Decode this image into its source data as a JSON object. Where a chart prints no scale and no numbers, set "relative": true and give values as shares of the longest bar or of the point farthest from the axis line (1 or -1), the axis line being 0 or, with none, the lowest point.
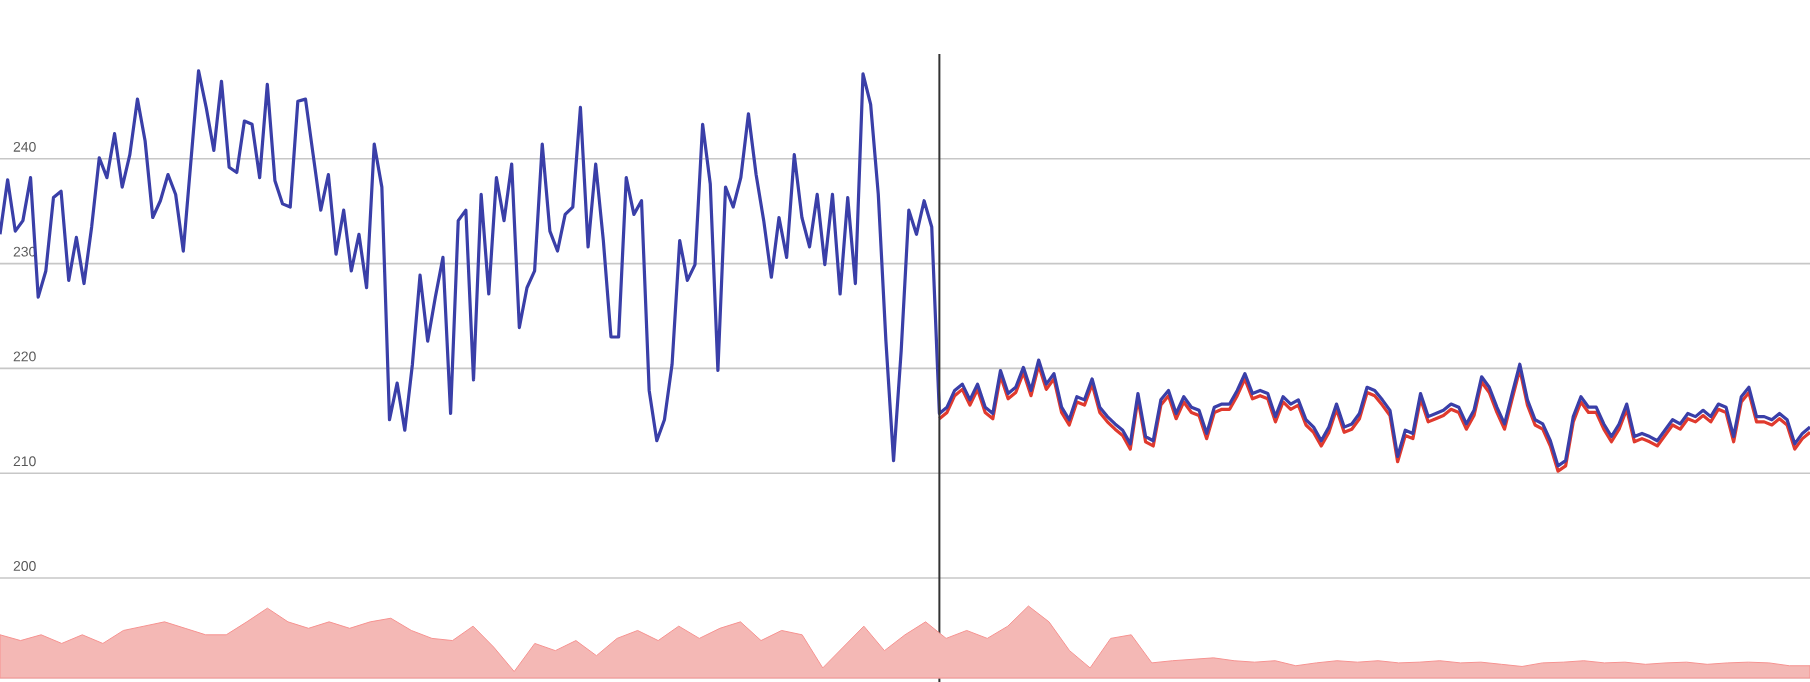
{
  "chart_data": [
    {
      "type": "line",
      "categories": [
        null,
        null,
        null,
        null,
        null,
        null,
        null,
        null,
        null,
        null,
        null,
        null,
        null,
        null,
        null,
        null,
        null,
        null,
        null,
        null,
        null,
        null,
        null,
        null,
        null,
        null,
        null,
        null,
        null,
        null,
        null,
        null,
        null,
        null,
        null,
        null,
        null,
        null,
        null,
        null,
        null,
        null,
        null,
        null,
        null,
        null,
        null,
        null,
        null,
        null,
        null,
        null,
        null,
        null,
        null,
        null,
        null,
        null,
        null,
        null,
        null,
        null,
        null,
        null,
        null,
        null,
        null,
        null,
        null,
        null,
        null,
        null,
        null,
        null,
        null,
        null,
        null,
        null,
        null,
        null,
        null,
        null,
        null,
        null,
        null,
        null,
        null,
        null,
        null,
        null,
        null,
        null,
        null,
        null,
        null,
        null,
        null,
        null,
        null,
        null,
        null,
        null,
        null,
        null,
        null,
        null,
        null,
        null,
        null,
        null,
        null,
        null,
        null,
        null,
        null,
        null,
        null,
        null,
        null,
        null,
        null,
        null,
        null,
        null,
        null,
        null,
        null,
        null,
        null,
        null,
        null,
        null,
        null,
        null,
        null,
        null,
        null,
        null,
        null,
        null,
        null,
        null,
        null,
        null,
        null,
        null,
        null,
        null,
        null,
        null,
        null,
        null,
        null,
        null,
        null,
        null,
        null,
        null,
        null,
        null,
        null,
        null,
        null,
        null,
        null,
        null,
        null,
        null,
        null,
        null,
        null,
        null,
        null,
        null,
        null,
        null,
        null,
        null,
        null,
        null,
        null,
        null,
        null,
        null,
        null,
        null,
        null,
        null,
        null,
        null,
        null,
        null,
        null,
        null,
        null,
        null,
        null,
        null,
        null,
        null,
        null,
        null,
        null,
        null,
        null,
        null,
        null,
        null,
        null,
        null,
        null,
        null,
        null,
        null,
        null,
        null,
        null,
        null,
        null,
        null,
        null,
        null,
        null,
        null,
        null,
        null,
        null,
        null,
        null,
        null,
        null,
        null,
        null,
        null,
        null,
        null,
        null,
        null
      ],
      "series": [
        {
          "color": "#e03a2e",
          "values": [
            null,
            null,
            null,
            null,
            null,
            null,
            null,
            null,
            null,
            null,
            null,
            null,
            null,
            null,
            null,
            null,
            null,
            null,
            null,
            null,
            null,
            null,
            null,
            null,
            null,
            null,
            null,
            null,
            null,
            null,
            null,
            null,
            null,
            null,
            null,
            null,
            null,
            null,
            null,
            null,
            null,
            null,
            null,
            null,
            null,
            null,
            null,
            null,
            null,
            null,
            null,
            null,
            null,
            null,
            null,
            null,
            null,
            null,
            null,
            null,
            null,
            null,
            null,
            null,
            null,
            null,
            null,
            null,
            null,
            null,
            null,
            null,
            null,
            null,
            null,
            null,
            null,
            null,
            null,
            null,
            null,
            null,
            null,
            null,
            null,
            null,
            null,
            null,
            null,
            null,
            null,
            null,
            null,
            null,
            null,
            null,
            null,
            null,
            null,
            null,
            null,
            null,
            null,
            null,
            null,
            null,
            null,
            null,
            null,
            null,
            null,
            null,
            null,
            null,
            null,
            null,
            null,
            null,
            null,
            null,
            null,
            null,
            null,
            215.2,
            215.8,
            217.4,
            218.0,
            216.5,
            218.0,
            215.8,
            215.2,
            219.3,
            217.1,
            217.7,
            219.6,
            217.4,
            220.3,
            218.0,
            219.0,
            215.8,
            214.6,
            216.8,
            216.5,
            218.5,
            215.8,
            214.9,
            214.2,
            213.6,
            212.3,
            217.1,
            213.0,
            212.6,
            216.5,
            217.4,
            215.2,
            216.8,
            215.8,
            215.5,
            213.3,
            215.8,
            216.1,
            216.1,
            217.4,
            219.0,
            217.1,
            217.4,
            217.1,
            214.9,
            216.8,
            216.1,
            216.5,
            214.6,
            213.9,
            212.6,
            213.9,
            216.1,
            213.9,
            214.2,
            215.2,
            217.7,
            217.4,
            216.5,
            215.5,
            211.1,
            213.6,
            213.3,
            217.1,
            214.9,
            215.2,
            215.5,
            216.1,
            215.8,
            214.2,
            215.5,
            218.7,
            217.7,
            215.8,
            214.2,
            217.1,
            219.9,
            216.5,
            214.6,
            214.2,
            212.6,
            210.2,
            210.7,
            214.9,
            216.8,
            215.8,
            215.8,
            214.2,
            213.0,
            214.2,
            216.1,
            213.0,
            213.3,
            213.0,
            212.6,
            213.6,
            214.6,
            214.2,
            215.2,
            214.9,
            215.5,
            214.9,
            216.1,
            215.8,
            213.0,
            216.8,
            217.7,
            214.9,
            214.9,
            214.6,
            215.2,
            214.6,
            212.3,
            213.3,
            213.9
          ]
        },
        {
          "color": "#3a3fa8",
          "values": [
            232.8,
            238.0,
            233.1,
            234.1,
            238.2,
            226.8,
            229.3,
            236.3,
            236.9,
            228.4,
            232.5,
            228.1,
            233.5,
            240.1,
            238.2,
            242.4,
            237.3,
            240.4,
            245.7,
            241.7,
            234.4,
            236.0,
            238.5,
            236.6,
            231.2,
            239.8,
            248.4,
            244.9,
            240.8,
            247.4,
            239.2,
            238.7,
            243.6,
            243.3,
            238.2,
            247.1,
            237.9,
            235.7,
            235.4,
            245.5,
            245.7,
            240.4,
            235.1,
            238.5,
            230.9,
            235.1,
            229.3,
            232.8,
            227.7,
            241.4,
            237.3,
            215.1,
            218.6,
            214.1,
            220.4,
            228.9,
            222.6,
            226.8,
            230.6,
            215.7,
            234.1,
            235.1,
            218.9,
            236.6,
            227.1,
            238.2,
            234.1,
            239.5,
            223.9,
            227.7,
            229.3,
            241.4,
            233.1,
            231.2,
            234.7,
            235.4,
            244.9,
            231.6,
            239.5,
            232.2,
            223.0,
            223.0,
            238.2,
            234.7,
            236.0,
            217.9,
            213.1,
            215.1,
            220.4,
            232.2,
            228.4,
            229.9,
            243.3,
            237.6,
            219.8,
            237.3,
            235.4,
            238.2,
            244.3,
            238.5,
            234.1,
            228.7,
            234.4,
            230.6,
            240.4,
            234.4,
            231.6,
            236.6,
            229.9,
            236.6,
            227.1,
            236.3,
            228.1,
            248.1,
            245.2,
            236.6,
            222.6,
            211.2,
            221.7,
            235.1,
            232.8,
            236.0,
            233.5,
            215.7,
            216.3,
            217.9,
            218.5,
            217.0,
            218.5,
            216.3,
            215.7,
            219.8,
            217.6,
            218.2,
            220.1,
            217.9,
            220.8,
            218.5,
            219.5,
            216.3,
            215.1,
            217.3,
            217.0,
            219.0,
            216.3,
            215.4,
            214.7,
            214.1,
            212.8,
            217.6,
            213.5,
            213.1,
            217.0,
            217.9,
            215.7,
            217.3,
            216.3,
            216.0,
            213.8,
            216.3,
            216.6,
            216.6,
            217.9,
            219.5,
            217.6,
            217.9,
            217.6,
            215.4,
            217.3,
            216.6,
            217.0,
            215.1,
            214.4,
            213.1,
            214.4,
            216.6,
            214.4,
            214.7,
            215.7,
            218.2,
            217.9,
            217.0,
            216.0,
            211.6,
            214.1,
            213.8,
            217.6,
            215.4,
            215.7,
            216.0,
            216.6,
            216.3,
            214.7,
            216.0,
            219.2,
            218.2,
            216.3,
            214.7,
            217.6,
            220.4,
            217.0,
            215.1,
            214.7,
            213.1,
            210.7,
            211.2,
            215.4,
            217.3,
            216.3,
            216.3,
            214.7,
            213.5,
            214.7,
            216.6,
            213.5,
            213.8,
            213.5,
            213.1,
            214.1,
            215.1,
            214.7,
            215.7,
            215.4,
            216.0,
            215.4,
            216.6,
            216.3,
            213.5,
            217.3,
            218.2,
            215.4,
            215.4,
            215.1,
            215.7,
            215.1,
            212.8,
            213.8,
            214.4
          ]
        }
      ],
      "ylim": [
        200,
        250
      ],
      "yticks": [
        200,
        210,
        220,
        230,
        240
      ],
      "grid": "y",
      "tick_labels": "y"
    },
    {
      "type": "area",
      "relative": true,
      "categories": [
        null,
        null,
        null,
        null,
        null,
        null,
        null,
        null,
        null,
        null,
        null,
        null,
        null,
        null,
        null,
        null,
        null,
        null,
        null,
        null,
        null,
        null,
        null,
        null,
        null,
        null,
        null,
        null,
        null,
        null,
        null,
        null,
        null,
        null,
        null,
        null,
        null,
        null,
        null,
        null,
        null,
        null,
        null,
        null,
        null,
        null,
        null,
        null,
        null,
        null,
        null,
        null,
        null,
        null,
        null,
        null,
        null,
        null,
        null,
        null,
        null,
        null,
        null,
        null,
        null,
        null,
        null,
        null,
        null,
        null,
        null,
        null,
        null,
        null,
        null,
        null,
        null,
        null,
        null,
        null,
        null,
        null,
        null,
        null,
        null,
        null,
        null,
        null,
        null
      ],
      "series": [
        {
          "color": "#f4b8b5",
          "values": [
            0.6,
            0.52,
            0.6,
            0.48,
            0.6,
            0.48,
            0.66,
            0.72,
            0.78,
            0.69,
            0.6,
            0.6,
            0.78,
            0.97,
            0.78,
            0.69,
            0.78,
            0.69,
            0.78,
            0.83,
            0.66,
            0.55,
            0.52,
            0.72,
            0.43,
            0.09,
            0.48,
            0.38,
            0.52,
            0.31,
            0.55,
            0.66,
            0.52,
            0.72,
            0.55,
            0.69,
            0.78,
            0.52,
            0.66,
            0.6,
            0.14,
            0.43,
            0.72,
            0.38,
            0.6,
            0.78,
            0.55,
            0.66,
            0.55,
            0.72,
            1,
            0.78,
            0.38,
            0.14,
            0.55,
            0.6,
            0.21,
            0.24,
            0.26,
            0.28,
            0.24,
            0.22,
            0.24,
            0.17,
            0.21,
            0.24,
            0.22,
            0.24,
            0.21,
            0.22,
            0.24,
            0.21,
            0.22,
            0.19,
            0.16,
            0.21,
            0.22,
            0.24,
            0.21,
            0.22,
            0.19,
            0.21,
            0.22,
            0.19,
            0.21,
            0.22,
            0.21,
            0.17,
            0.17
          ]
        }
      ]
    }
  ]
}
